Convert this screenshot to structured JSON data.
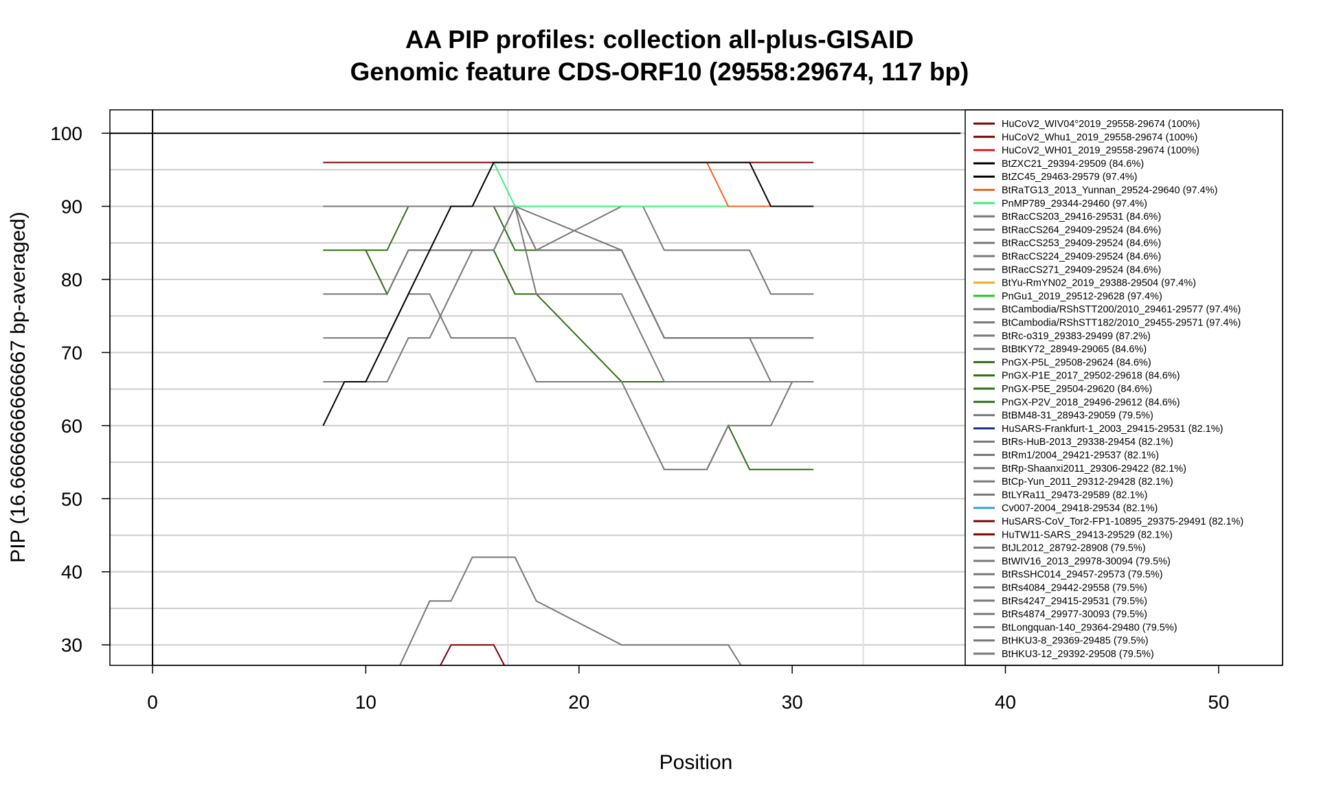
{
  "chart_data": {
    "type": "line",
    "title": "AA PIP profiles: collection all-plus-GISAID",
    "subtitle": "Genomic feature CDS-ORF10 (29558:29674, 117 bp)",
    "xlabel": "Position",
    "ylabel": "PIP (16.6666666666667 bp-averaged)",
    "xlim": [
      -2,
      53
    ],
    "ylim": [
      27.2,
      103.2
    ],
    "x_ticks": [
      "0",
      "10",
      "20",
      "30",
      "40",
      "50"
    ],
    "y_ticks": [
      "30",
      "40",
      "50",
      "60",
      "70",
      "80",
      "90",
      "100"
    ],
    "grid": "on",
    "legend_position": "right",
    "series": [
      {
        "name": "HuCoV2_WIV04°2019_29558-29674 (100%)",
        "color": "#7a0000",
        "points": []
      },
      {
        "name": "HuCoV2_Whu1_2019_29558-29674 (100%)",
        "color": "#7a0000",
        "points": []
      },
      {
        "name": "HuCoV2_WH01_2019_29558-29674 (100%)",
        "color": "#e02020",
        "points": []
      },
      {
        "name": "BtZXC21_29394-29509 (84.6%)",
        "color": "#000000",
        "points": []
      },
      {
        "name": "BtZC45_29463-29579 (97.4%)",
        "color": "#000000",
        "points": [
          [
            8,
            60
          ],
          [
            9,
            66
          ],
          [
            10,
            66
          ],
          [
            11,
            72
          ],
          [
            12,
            78
          ],
          [
            13,
            84
          ],
          [
            14,
            90
          ],
          [
            15,
            90
          ],
          [
            16,
            96
          ],
          [
            28,
            96
          ],
          [
            29,
            90
          ],
          [
            31,
            90
          ]
        ]
      },
      {
        "name": "BtRaTG13_2013_Yunnan_29524-29640 (97.4%)",
        "color": "#f26522",
        "points": [
          [
            26,
            96
          ],
          [
            27,
            90
          ],
          [
            29,
            90
          ]
        ]
      },
      {
        "name": "PnMP789_29344-29460 (97.4%)",
        "color": "#3ef07a",
        "points": [
          [
            16,
            96
          ],
          [
            17,
            90
          ],
          [
            27,
            90
          ]
        ]
      },
      {
        "name": "BtRacCS203_29416-29531 (84.6%)",
        "color": "#777777",
        "points": [
          [
            8,
            78
          ],
          [
            11,
            78
          ],
          [
            12,
            84
          ],
          [
            16,
            84
          ],
          [
            17,
            90
          ],
          [
            18,
            84
          ],
          [
            19,
            84
          ],
          [
            22,
            84
          ],
          [
            24,
            72
          ],
          [
            28,
            72
          ],
          [
            29,
            66
          ],
          [
            31,
            66
          ]
        ]
      },
      {
        "name": "BtRacCS264_29409-29524 (84.6%)",
        "color": "#777777",
        "points": []
      },
      {
        "name": "BtRacCS253_29409-29524 (84.6%)",
        "color": "#777777",
        "points": []
      },
      {
        "name": "BtRacCS224_29409-29524 (84.6%)",
        "color": "#777777",
        "points": []
      },
      {
        "name": "BtRacCS271_29409-29524 (84.6%)",
        "color": "#777777",
        "points": []
      },
      {
        "name": "BtYu-RmYN02_2019_29388-29504 (97.4%)",
        "color": "#f5a623",
        "points": []
      },
      {
        "name": "PnGu1_2019_29512-29628 (97.4%)",
        "color": "#22c422",
        "points": []
      },
      {
        "name": "BtCambodia/RShSTT200/2010_29461-29577 (97.4%)",
        "color": "#777777",
        "points": [
          [
            8,
            90
          ],
          [
            16,
            90
          ],
          [
            17,
            90
          ],
          [
            18,
            84
          ],
          [
            22,
            90
          ],
          [
            23,
            90
          ],
          [
            24,
            84
          ],
          [
            28,
            84
          ],
          [
            29,
            78
          ],
          [
            31,
            78
          ]
        ]
      },
      {
        "name": "BtCambodia/RShSTT182/2010_29455-29571 (97.4%)",
        "color": "#777777",
        "points": [
          [
            17,
            90
          ],
          [
            22,
            84
          ],
          [
            24,
            72
          ],
          [
            28,
            72
          ],
          [
            31,
            72
          ]
        ]
      },
      {
        "name": "BtRc-o319_29383-29499 (87.2%)",
        "color": "#777777",
        "points": [
          [
            8,
            72
          ],
          [
            11,
            72
          ],
          [
            12,
            78
          ],
          [
            13,
            78
          ],
          [
            14,
            72
          ],
          [
            17,
            72
          ],
          [
            18,
            66
          ],
          [
            22,
            66
          ],
          [
            24,
            54
          ],
          [
            26,
            54
          ],
          [
            27,
            60
          ],
          [
            29,
            60
          ],
          [
            30,
            66
          ],
          [
            31,
            66
          ]
        ]
      },
      {
        "name": "BtBtKY72_28949-29065 (84.6%)",
        "color": "#777777",
        "points": [
          [
            8,
            66
          ],
          [
            10,
            66
          ],
          [
            11,
            66
          ],
          [
            12,
            72
          ],
          [
            13,
            72
          ],
          [
            14,
            78
          ],
          [
            15,
            84
          ],
          [
            16,
            84
          ],
          [
            17,
            90
          ],
          [
            18,
            78
          ],
          [
            22,
            78
          ],
          [
            24,
            66
          ],
          [
            31,
            66
          ]
        ]
      },
      {
        "name": "PnGX-P5L_29508-29624 (84.6%)",
        "color": "#2d6e10",
        "points": [
          [
            8,
            84
          ],
          [
            10,
            84
          ],
          [
            11,
            78
          ],
          [
            12,
            84
          ],
          [
            15,
            84
          ],
          [
            16,
            84
          ],
          [
            17,
            78
          ],
          [
            18,
            78
          ],
          [
            22,
            66
          ],
          [
            24,
            66
          ]
        ]
      },
      {
        "name": "PnGX-P1E_2017_29502-29618 (84.6%)",
        "color": "#2d6e10",
        "points": [
          [
            10,
            84
          ],
          [
            11,
            84
          ],
          [
            12,
            90
          ],
          [
            16,
            90
          ],
          [
            17,
            84
          ],
          [
            22,
            84
          ],
          [
            24,
            72
          ],
          [
            31,
            72
          ]
        ]
      },
      {
        "name": "PnGX-P5E_29504-29620 (84.6%)",
        "color": "#2d6e10",
        "points": [
          [
            26,
            54
          ],
          [
            27,
            60
          ],
          [
            28,
            54
          ],
          [
            31,
            54
          ]
        ]
      },
      {
        "name": "PnGX-P2V_2018_29496-29612 (84.6%)",
        "color": "#2d6e10",
        "points": []
      },
      {
        "name": "BtBM48-31_28943-29059 (79.5%)",
        "color": "#777777",
        "points": [
          [
            11.6,
            27.2
          ],
          [
            13,
            36
          ],
          [
            14,
            36
          ],
          [
            15,
            42
          ],
          [
            17,
            42
          ],
          [
            18,
            36
          ],
          [
            22,
            30
          ],
          [
            27,
            30
          ],
          [
            27.6,
            27.2
          ]
        ]
      },
      {
        "name": "HuSARS-Frankfurt-1_2003_29415-29531 (82.1%)",
        "color": "#1a2d8a",
        "points": []
      },
      {
        "name": "BtRs-HuB-2013_29338-29454 (82.1%)",
        "color": "#777777",
        "points": []
      },
      {
        "name": "BtRm1/2004_29421-29537 (82.1%)",
        "color": "#777777",
        "points": []
      },
      {
        "name": "BtRp-Shaanxi2011_29306-29422 (82.1%)",
        "color": "#777777",
        "points": []
      },
      {
        "name": "BtCp-Yun_2011_29312-29428 (82.1%)",
        "color": "#777777",
        "points": []
      },
      {
        "name": "BtLYRa11_29473-29589 (82.1%)",
        "color": "#777777",
        "points": []
      },
      {
        "name": "Cv007-2004_29418-29534 (82.1%)",
        "color": "#29a3e0",
        "points": []
      },
      {
        "name": "HuSARS-CoV_Tor2-FP1-10895_29375-29491 (82.1%)",
        "color": "#7a0000",
        "points": [
          [
            13.5,
            27.2
          ],
          [
            14,
            30
          ],
          [
            16,
            30
          ],
          [
            16.5,
            27.2
          ]
        ]
      },
      {
        "name": "HuTW11-SARS_29413-29529 (82.1%)",
        "color": "#7a0000",
        "points": []
      },
      {
        "name": "BtJL2012_28792-28908 (79.5%)",
        "color": "#777777",
        "points": []
      },
      {
        "name": "BtWIV16_2013_29978-30094 (79.5%)",
        "color": "#777777",
        "points": []
      },
      {
        "name": "BtRsSHC014_29457-29573 (79.5%)",
        "color": "#777777",
        "points": []
      },
      {
        "name": "BtRs4084_29442-29558 (79.5%)",
        "color": "#777777",
        "points": []
      },
      {
        "name": "BtRs4247_29415-29531 (79.5%)",
        "color": "#777777",
        "points": []
      },
      {
        "name": "BtRs4874_29977-30093 (79.5%)",
        "color": "#777777",
        "points": []
      },
      {
        "name": "BtLongquan-140_29364-29480 (79.5%)",
        "color": "#777777",
        "points": []
      },
      {
        "name": "BtHKU3-8_29369-29485 (79.5%)",
        "color": "#777777",
        "points": []
      },
      {
        "name": "BtHKU3-12_29392-29508 (79.5%)",
        "color": "#777777",
        "points": []
      }
    ],
    "reference_lines": [
      {
        "axis": "y",
        "value": 100,
        "color": "#000000"
      },
      {
        "axis": "y",
        "value": 96,
        "color": "#7a0000",
        "x_range": [
          8,
          31
        ]
      },
      {
        "axis": "x",
        "value": 0,
        "color": "#000000"
      }
    ]
  }
}
